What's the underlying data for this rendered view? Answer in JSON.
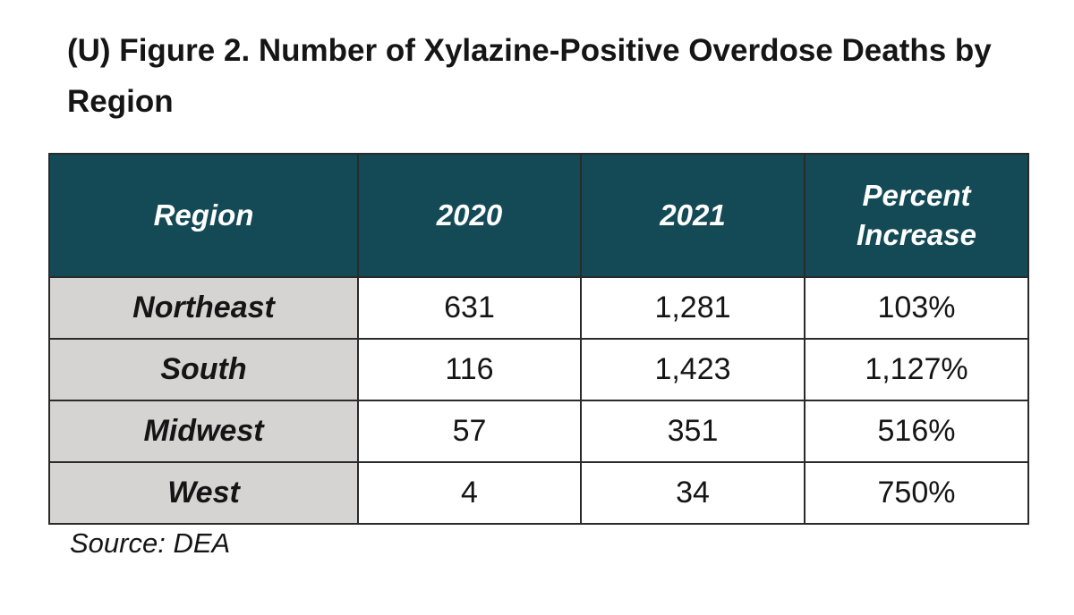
{
  "title": "(U) Figure 2. Number of Xylazine-Positive Overdose Deaths by Region",
  "source": "Source: DEA",
  "colors": {
    "header_bg": "#134a55",
    "header_text": "#ffffff",
    "region_cell_bg": "#d6d3d3",
    "cell_bg": "#ffffff"
  },
  "chart_data": {
    "type": "table",
    "title": "(U) Figure 2. Number of Xylazine-Positive Overdose Deaths by Region",
    "columns": [
      "Region",
      "2020",
      "2021",
      "Percent Increase"
    ],
    "rows": [
      [
        "Northeast",
        "631",
        "1,281",
        "103%"
      ],
      [
        "South",
        "116",
        "1,423",
        "1,127%"
      ],
      [
        "Midwest",
        "57",
        "351",
        "516%"
      ],
      [
        "West",
        "4",
        "34",
        "750%"
      ]
    ],
    "numeric": [
      {
        "region": "Northeast",
        "y2020": 631,
        "y2021": 1281,
        "percent_increase": 103
      },
      {
        "region": "South",
        "y2020": 116,
        "y2021": 1423,
        "percent_increase": 1127
      },
      {
        "region": "Midwest",
        "y2020": 57,
        "y2021": 351,
        "percent_increase": 516
      },
      {
        "region": "West",
        "y2020": 4,
        "y2021": 34,
        "percent_increase": 750
      }
    ],
    "source": "Source: DEA"
  }
}
